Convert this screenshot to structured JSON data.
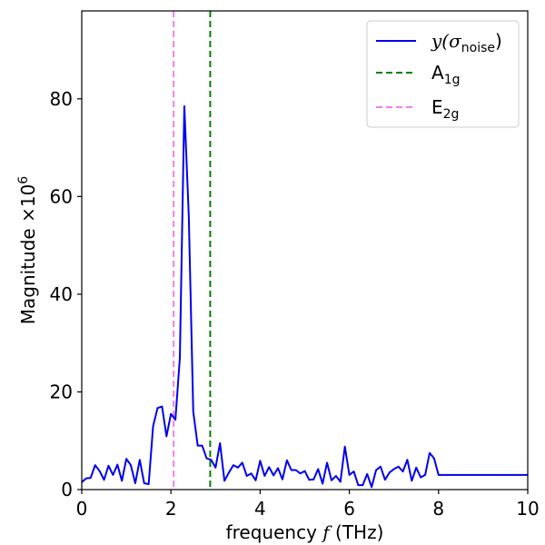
{
  "chart_data": {
    "type": "line",
    "xlabel": {
      "prefix": "frequency ",
      "var": "f",
      "suffix": " (THz)"
    },
    "ylabel": {
      "text": "Magnitude ×10",
      "exponent": "6"
    },
    "xlim": [
      0,
      10
    ],
    "ylim": [
      0,
      98
    ],
    "xticks": [
      0,
      2,
      4,
      6,
      8,
      10
    ],
    "yticks": [
      0,
      20,
      40,
      60,
      80
    ],
    "grid": false,
    "legend_position": "top-right",
    "series": [
      {
        "name": "y(σnoise)",
        "legend_main": "y(σ",
        "legend_sub": "noise",
        "legend_end": ")",
        "color": "#0000ee",
        "x": [
          0,
          0.1,
          0.2,
          0.3,
          0.4,
          0.5,
          0.6,
          0.7,
          0.8,
          0.9,
          1.0,
          1.1,
          1.2,
          1.3,
          1.4,
          1.5,
          1.6,
          1.7,
          1.8,
          1.9,
          2.0,
          2.1,
          2.2,
          2.3,
          2.4,
          2.5,
          2.6,
          2.7,
          2.8,
          2.9,
          3.0,
          3.1,
          3.2,
          3.3,
          3.4,
          3.5,
          3.6,
          3.7,
          3.8,
          3.9,
          4.0,
          4.1,
          4.2,
          4.3,
          4.4,
          4.5,
          4.6,
          4.7,
          4.8,
          4.9,
          5.0,
          5.1,
          5.2,
          5.3,
          5.4,
          5.5,
          5.6,
          5.7,
          5.8,
          5.9,
          6.0,
          6.1,
          6.2,
          6.3,
          6.4,
          6.5,
          6.6,
          6.7,
          6.8,
          6.9,
          7.0,
          7.1,
          7.2,
          7.3,
          7.4,
          7.5,
          7.6,
          7.7,
          7.8,
          7.9,
          8.0,
          8.1,
          8.2,
          8.3,
          8.4,
          8.5,
          8.6,
          8.7,
          8.8,
          8.9,
          9.0,
          9.1,
          9.2,
          9.3,
          9.4,
          9.5,
          9.6,
          9.7,
          9.8,
          9.9,
          10.0
        ],
        "y": [
          1.5,
          2.3,
          2.4,
          5.0,
          3.8,
          2.0,
          4.9,
          3.0,
          5.1,
          1.8,
          6.3,
          5.0,
          1.3,
          6.1,
          1.3,
          1.1,
          13.0,
          16.7,
          17.0,
          10.9,
          15.5,
          14.3,
          27.0,
          78.5,
          56.0,
          16.0,
          9.0,
          9.0,
          6.4,
          6.1,
          4.5,
          9.5,
          1.8,
          3.5,
          5.0,
          4.5,
          5.5,
          2.8,
          3.3,
          1.9,
          5.9,
          2.8,
          4.6,
          2.9,
          4.4,
          2.1,
          6.0,
          4.0,
          4.0,
          3.3,
          3.8,
          2.0,
          2.1,
          4.2,
          1.2,
          5.5,
          1.9,
          2.8,
          1.6,
          8.8,
          3.0,
          3.7,
          0.9,
          0.9,
          3.2,
          0.5,
          4.0,
          4.7,
          2.0,
          3.5,
          4.2,
          4.7,
          3.7,
          6.1,
          1.8,
          4.5,
          2.5,
          3.0,
          7.5,
          6.4,
          3.0,
          3.0,
          3.0,
          3.0,
          3.0,
          3.0,
          3.0,
          3.0,
          3.0,
          3.0,
          3.0,
          3.0,
          3.0,
          3.0,
          3.0,
          3.0,
          3.0,
          3.0,
          3.0,
          3.0,
          3.0
        ]
      },
      {
        "name": "A1g",
        "legend_main": "A",
        "legend_sub": "1g",
        "color": "#008000",
        "vline_x": 2.88
      },
      {
        "name": "E2g",
        "legend_main": "E",
        "legend_sub": "2g",
        "color": "#ee82ee",
        "vline_x": 2.06
      }
    ]
  }
}
